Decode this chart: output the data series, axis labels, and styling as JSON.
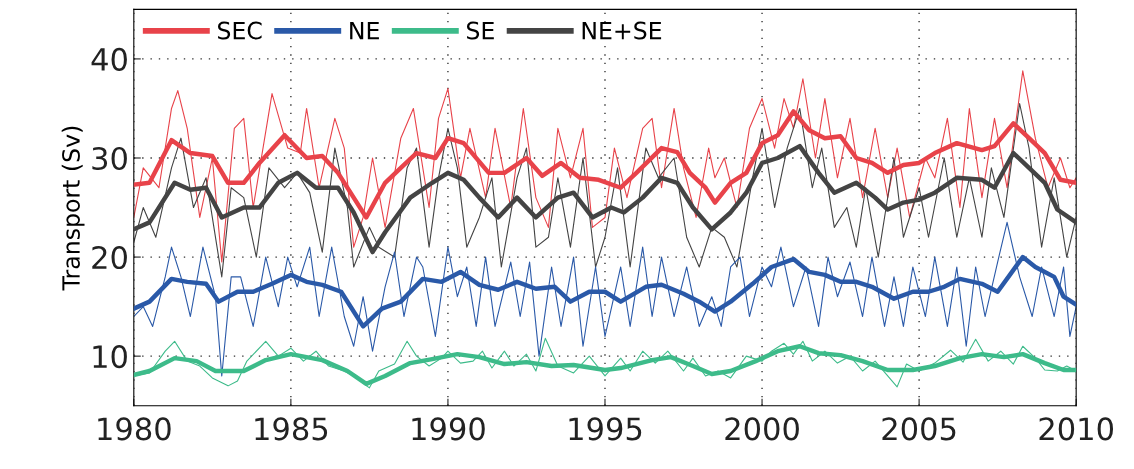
{
  "chart_data": {
    "type": "line",
    "ylabel": "Transport (Sv)",
    "xlim": [
      1980,
      2010
    ],
    "ylim": [
      5,
      45
    ],
    "xticks": [
      1980,
      1985,
      1990,
      1995,
      2000,
      2005,
      2010
    ],
    "yticks": [
      10,
      20,
      30,
      40
    ],
    "grid": true,
    "legend": "top left",
    "marker": "none",
    "line_style": "solid",
    "series": [
      {
        "color": "#e8434a",
        "x": [
          1980,
          1980.3,
          1980.8,
          1981.2,
          1981.4,
          1981.7,
          1982.1,
          1982.5,
          1982.8,
          1983.2,
          1983.5,
          1983.8,
          1984.4,
          1984.9,
          1985.3,
          1985.5,
          1985.9,
          1986.4,
          1986.7,
          1987.0,
          1987.3,
          1987.6,
          1988.0,
          1988.5,
          1988.9,
          1989.4,
          1989.7,
          1990.0,
          1990.4,
          1990.7,
          1991.2,
          1991.5,
          1992.0,
          1992.4,
          1992.8,
          1993.2,
          1993.5,
          1993.9,
          1994.3,
          1994.6,
          1995.0,
          1995.3,
          1995.7,
          1996.2,
          1996.5,
          1996.8,
          1997.2,
          1997.5,
          1997.9,
          1998.3,
          1998.5,
          1998.8,
          1999.2,
          1999.6,
          2000.0,
          2000.4,
          2000.7,
          2001.0,
          2001.3,
          2001.7,
          2002.0,
          2002.4,
          2002.8,
          2003.2,
          2003.6,
          2004.0,
          2004.3,
          2004.7,
          2005.2,
          2005.5,
          2005.9,
          2006.3,
          2006.6,
          2007.0,
          2007.4,
          2007.8,
          2008.3,
          2008.7,
          2009.1,
          2009.5,
          2009.8,
          2010.0
        ],
        "values": [
          24,
          29,
          27,
          35,
          36.8,
          33,
          24,
          30,
          19.5,
          33,
          34,
          25,
          36.5,
          31,
          30.5,
          35,
          27,
          34,
          31,
          21,
          24,
          30,
          23,
          32,
          35,
          25,
          34,
          37,
          28,
          33,
          26,
          33,
          25,
          35,
          26,
          23,
          33,
          28,
          33,
          23,
          24,
          31,
          26,
          33,
          34,
          27,
          35,
          29,
          24,
          31,
          28,
          30,
          25,
          33,
          36,
          31,
          36,
          33,
          38,
          30,
          36,
          28,
          34,
          26,
          33,
          26,
          31,
          24,
          30,
          28,
          34,
          25,
          35,
          26,
          34,
          27,
          38.8,
          32,
          27,
          30,
          27,
          28
        ]
      },
      {
        "color": "#444444",
        "x": [
          1980,
          1980.3,
          1980.7,
          1981.2,
          1981.5,
          1981.9,
          1982.3,
          1982.8,
          1983.1,
          1983.5,
          1983.9,
          1984.3,
          1984.8,
          1985.2,
          1985.6,
          1986.0,
          1986.4,
          1986.8,
          1987.0,
          1987.5,
          1987.8,
          1988.3,
          1988.7,
          1989.0,
          1989.4,
          1989.7,
          1990.0,
          1990.3,
          1990.6,
          1991.0,
          1991.4,
          1991.7,
          1992.2,
          1992.5,
          1992.8,
          1993.2,
          1993.5,
          1993.9,
          1994.3,
          1994.7,
          1995.0,
          1995.4,
          1995.8,
          1996.3,
          1996.7,
          1997.2,
          1997.6,
          1998.0,
          1998.4,
          1998.8,
          1999.2,
          1999.7,
          2000.0,
          2000.4,
          2000.8,
          2001.2,
          2001.6,
          2001.9,
          2002.3,
          2002.7,
          2003.0,
          2003.3,
          2003.7,
          2004.2,
          2004.5,
          2005.0,
          2005.3,
          2005.8,
          2006.2,
          2006.6,
          2007.0,
          2007.3,
          2007.7,
          2008.2,
          2008.5,
          2008.9,
          2009.3,
          2009.7,
          2010.0
        ],
        "values": [
          21.5,
          25,
          22,
          29,
          32,
          25,
          28,
          18,
          27,
          26,
          20,
          29,
          27,
          28.5,
          26.5,
          20.5,
          31,
          25,
          19,
          23,
          21,
          20,
          29,
          31,
          21,
          28,
          33,
          29,
          21,
          24,
          28,
          19,
          28,
          31,
          21,
          22,
          28,
          21,
          30,
          19,
          22,
          29,
          19,
          31,
          28,
          30,
          22,
          19,
          23,
          22,
          19,
          28,
          33,
          25,
          31,
          35,
          27,
          31,
          23,
          25,
          21,
          27,
          20,
          30,
          22,
          27,
          22,
          30,
          22,
          28,
          22,
          29,
          24,
          35.5,
          31,
          21,
          28,
          20,
          24
        ]
      },
      {
        "color": "#2a59a8",
        "x": [
          1980,
          1980.3,
          1980.6,
          1981.0,
          1981.2,
          1981.5,
          1981.8,
          1982.2,
          1982.6,
          1982.8,
          1983.1,
          1983.4,
          1983.8,
          1984.2,
          1984.6,
          1984.9,
          1985.2,
          1985.6,
          1985.9,
          1986.3,
          1986.7,
          1987.0,
          1987.3,
          1987.6,
          1988.0,
          1988.3,
          1988.6,
          1989.0,
          1989.2,
          1989.6,
          1990.0,
          1990.3,
          1990.6,
          1990.9,
          1991.2,
          1991.5,
          1992.0,
          1992.3,
          1992.6,
          1992.9,
          1993.3,
          1993.6,
          1994.0,
          1994.3,
          1994.7,
          1995.0,
          1995.5,
          1995.8,
          1996.2,
          1996.5,
          1996.8,
          1997.2,
          1997.6,
          1998.0,
          1998.4,
          1998.7,
          1999.0,
          1999.3,
          1999.6,
          2000.0,
          2000.3,
          2000.6,
          2001.0,
          2001.4,
          2001.8,
          2002.1,
          2002.4,
          2002.8,
          2003.2,
          2003.5,
          2003.9,
          2004.2,
          2004.5,
          2004.8,
          2005.2,
          2005.5,
          2005.9,
          2006.2,
          2006.5,
          2006.8,
          2007.1,
          2007.5,
          2007.8,
          2008.2,
          2008.6,
          2008.9,
          2009.3,
          2009.6,
          2009.8,
          2010
        ],
        "values": [
          14,
          15,
          13,
          18,
          21,
          18,
          14,
          21,
          16,
          8,
          18,
          18,
          13,
          20,
          15,
          20,
          17,
          21,
          14,
          21,
          14,
          11,
          16,
          10.5,
          17,
          20.5,
          14,
          20,
          19,
          12,
          21,
          16,
          19,
          13,
          20,
          13,
          19.5,
          14,
          19.5,
          10,
          19,
          13,
          20,
          11,
          19,
          12,
          19,
          13,
          21,
          14,
          20,
          14,
          19,
          13,
          16,
          13,
          19,
          20,
          14,
          19,
          17,
          21,
          15,
          19,
          13,
          20,
          16,
          19.5,
          14,
          20,
          13,
          18,
          13,
          19,
          14,
          20,
          13,
          19,
          11,
          19,
          14,
          19.5,
          23.5,
          18,
          14,
          19,
          14,
          19,
          12,
          15
        ]
      },
      {
        "color": "#3dbb8a",
        "x": [
          1980,
          1980.5,
          1981,
          1981.3,
          1981.7,
          1982.1,
          1982.5,
          1983,
          1983.3,
          1983.6,
          1984.2,
          1984.6,
          1985.0,
          1985.4,
          1985.8,
          1986.2,
          1986.7,
          1987.0,
          1987.5,
          1987.8,
          1988.3,
          1988.7,
          1989.0,
          1989.4,
          1989.8,
          1990.0,
          1990.4,
          1990.8,
          1991.1,
          1991.4,
          1991.8,
          1992.1,
          1992.5,
          1992.8,
          1993.1,
          1993.5,
          1994.0,
          1994.5,
          1995.0,
          1995.5,
          1995.8,
          1996.2,
          1996.6,
          1997.0,
          1997.5,
          1997.8,
          1998.2,
          1998.6,
          1999.0,
          1999.5,
          2000.0,
          2000.3,
          2000.7,
          2001.0,
          2001.3,
          2001.6,
          2002.0,
          2002.4,
          2002.8,
          2003.2,
          2003.6,
          2004.0,
          2004.3,
          2004.6,
          2005.0,
          2005.5,
          2006.0,
          2006.4,
          2006.8,
          2007.2,
          2007.6,
          2008.0,
          2008.3,
          2008.7,
          2009.0,
          2009.4,
          2009.7,
          2010
        ],
        "values": [
          8,
          8.3,
          10.5,
          11.5,
          9.5,
          9,
          7.8,
          7,
          7.5,
          9.5,
          11.5,
          10,
          10.8,
          9.5,
          10.5,
          9,
          8.5,
          8,
          6.8,
          8.5,
          9.2,
          11.5,
          10,
          9,
          9.8,
          10.5,
          9.3,
          9.5,
          10.5,
          8.8,
          10.5,
          9.0,
          10.2,
          8.5,
          11.8,
          9.0,
          8.3,
          10.0,
          8.0,
          9.8,
          8.5,
          10.5,
          9.3,
          10.5,
          8.5,
          9.8,
          8,
          8.5,
          7.8,
          10,
          9.5,
          10.5,
          11.3,
          10.2,
          11.5,
          9.5,
          10.5,
          9.3,
          10,
          8.5,
          9.5,
          8,
          6.9,
          9.2,
          8.5,
          9.3,
          10.6,
          9.4,
          11.7,
          9.5,
          10.5,
          9.2,
          11.0,
          9.8,
          8.6,
          8.5,
          9.0,
          8.5
        ]
      },
      {
        "name": "SEC",
        "color": "#e8434a",
        "x": [
          1980,
          1980.5,
          1981.2,
          1981.8,
          1982.5,
          1983,
          1983.5,
          1984,
          1984.8,
          1985.5,
          1986,
          1986.5,
          1987,
          1987.4,
          1988,
          1988.5,
          1989,
          1989.6,
          1990,
          1990.5,
          1991.3,
          1991.8,
          1992.5,
          1993,
          1993.6,
          1994.2,
          1994.8,
          1995.5,
          1996,
          1996.8,
          1997.3,
          1997.7,
          1998.2,
          1998.5,
          1999,
          1999.5,
          2000,
          2000.5,
          2001,
          2001.5,
          2002,
          2002.5,
          2003,
          2003.5,
          2004,
          2004.5,
          2005,
          2005.5,
          2006.2,
          2007,
          2007.4,
          2008,
          2008.5,
          2009,
          2009.5,
          2010
        ],
        "values": [
          27.3,
          27.5,
          31.8,
          30.5,
          30.2,
          27.5,
          27.5,
          29.5,
          32.3,
          30,
          30.2,
          28.5,
          26,
          24,
          27.5,
          29,
          30.5,
          30,
          32,
          31.5,
          28.5,
          28.5,
          30,
          28.2,
          29.5,
          28,
          27.8,
          27,
          28.5,
          31,
          30.6,
          28.5,
          27,
          25.5,
          27.5,
          28.5,
          31.5,
          32.3,
          34.7,
          32.8,
          32,
          32.2,
          30,
          29.5,
          28.5,
          29.3,
          29.5,
          30.5,
          31.5,
          30.8,
          31.2,
          33.5,
          32,
          30.5,
          27.8,
          27.5
        ]
      },
      {
        "name": "NE",
        "color": "#2a59a8",
        "x": [
          1980,
          1980.5,
          1981.2,
          1981.7,
          1982.3,
          1982.7,
          1983.3,
          1983.8,
          1984.4,
          1985,
          1985.5,
          1986,
          1986.6,
          1987.3,
          1987.9,
          1988.5,
          1989.2,
          1989.8,
          1990.4,
          1991,
          1991.6,
          1992.2,
          1992.8,
          1993.4,
          1993.9,
          1994.5,
          1995,
          1995.5,
          1996.3,
          1996.8,
          1997.5,
          1998,
          1998.5,
          1999,
          1999.7,
          2000.3,
          2001,
          2001.5,
          2002,
          2002.5,
          2003,
          2003.5,
          2004.2,
          2004.8,
          2005.3,
          2005.8,
          2006.3,
          2007,
          2007.5,
          2008.3,
          2008.7,
          2009.3,
          2009.6,
          2010
        ],
        "values": [
          14.8,
          15.5,
          17.8,
          17.5,
          17.3,
          15.5,
          16.5,
          16.5,
          17.3,
          18.2,
          17.5,
          17.2,
          16.5,
          13,
          14.8,
          15.5,
          17.8,
          17.5,
          18.5,
          17.2,
          16.7,
          17.5,
          16.8,
          17,
          15.5,
          16.5,
          16.5,
          15.5,
          17,
          17.2,
          16.3,
          15.5,
          14.5,
          15.5,
          17.3,
          19,
          19.8,
          18.5,
          18.2,
          17.5,
          17.5,
          17,
          15.8,
          16.5,
          16.5,
          17,
          17.8,
          17.3,
          16.5,
          20,
          19,
          18,
          16,
          15.2
        ]
      },
      {
        "name": "SE",
        "color": "#3dbb8a",
        "x": [
          1980,
          1980.5,
          1981.3,
          1982,
          1982.6,
          1983.5,
          1984.2,
          1985,
          1986,
          1986.8,
          1987.4,
          1988,
          1988.8,
          1989.5,
          1990.3,
          1991,
          1991.8,
          1992.5,
          1993.3,
          1994,
          1995,
          1995.5,
          1996.5,
          1997.1,
          1997.8,
          1998.4,
          1999,
          1999.8,
          2000.5,
          2001.2,
          2001.8,
          2002.5,
          2003.2,
          2004,
          2004.8,
          2005.5,
          2006.3,
          2007,
          2007.7,
          2008.3,
          2009,
          2009.6,
          2010
        ],
        "values": [
          8.1,
          8.5,
          9.8,
          9.5,
          8.5,
          8.5,
          9.6,
          10.2,
          9.6,
          8.5,
          7.2,
          8,
          9.3,
          9.7,
          10.2,
          9.9,
          9.2,
          9.4,
          9,
          9.1,
          8.6,
          8.8,
          9.6,
          9.9,
          9,
          8.2,
          8.5,
          9.5,
          10.5,
          11,
          10.3,
          10.1,
          9.5,
          8.6,
          8.6,
          9.0,
          9.8,
          10.2,
          9.9,
          10.2,
          9.3,
          8.6,
          8.6
        ]
      },
      {
        "name": "NE+SE",
        "color": "#444444",
        "x": [
          1980,
          1980.5,
          1981.3,
          1981.8,
          1982.3,
          1982.8,
          1983.5,
          1984,
          1984.6,
          1985.2,
          1985.8,
          1986.5,
          1987,
          1987.6,
          1988,
          1988.8,
          1989.5,
          1990,
          1990.5,
          1991,
          1991.6,
          1992.2,
          1992.8,
          1993.5,
          1994,
          1994.6,
          1995.2,
          1995.6,
          1996.2,
          1996.8,
          1997.3,
          1997.8,
          1998.4,
          1999,
          1999.5,
          2000,
          2000.5,
          2001.2,
          2001.8,
          2002.3,
          2003,
          2003.6,
          2004,
          2004.5,
          2005,
          2005.5,
          2006.2,
          2007,
          2007.4,
          2008,
          2008.5,
          2009,
          2009.4,
          2010
        ],
        "values": [
          22.8,
          23.5,
          27.5,
          26.8,
          27,
          24,
          25,
          25,
          27.5,
          28.5,
          27,
          27,
          24.5,
          20.5,
          22.5,
          26,
          27.5,
          28.5,
          27.8,
          26,
          24,
          26,
          24,
          26,
          26.5,
          24,
          25,
          24.5,
          26,
          28,
          27.5,
          25,
          22.8,
          24.5,
          26.5,
          29.5,
          30,
          31.2,
          28.5,
          26.5,
          27.5,
          26,
          24.8,
          25.5,
          25.8,
          26.5,
          28,
          27.8,
          27,
          30.5,
          29,
          27.5,
          24.8,
          23.5
        ]
      }
    ]
  }
}
